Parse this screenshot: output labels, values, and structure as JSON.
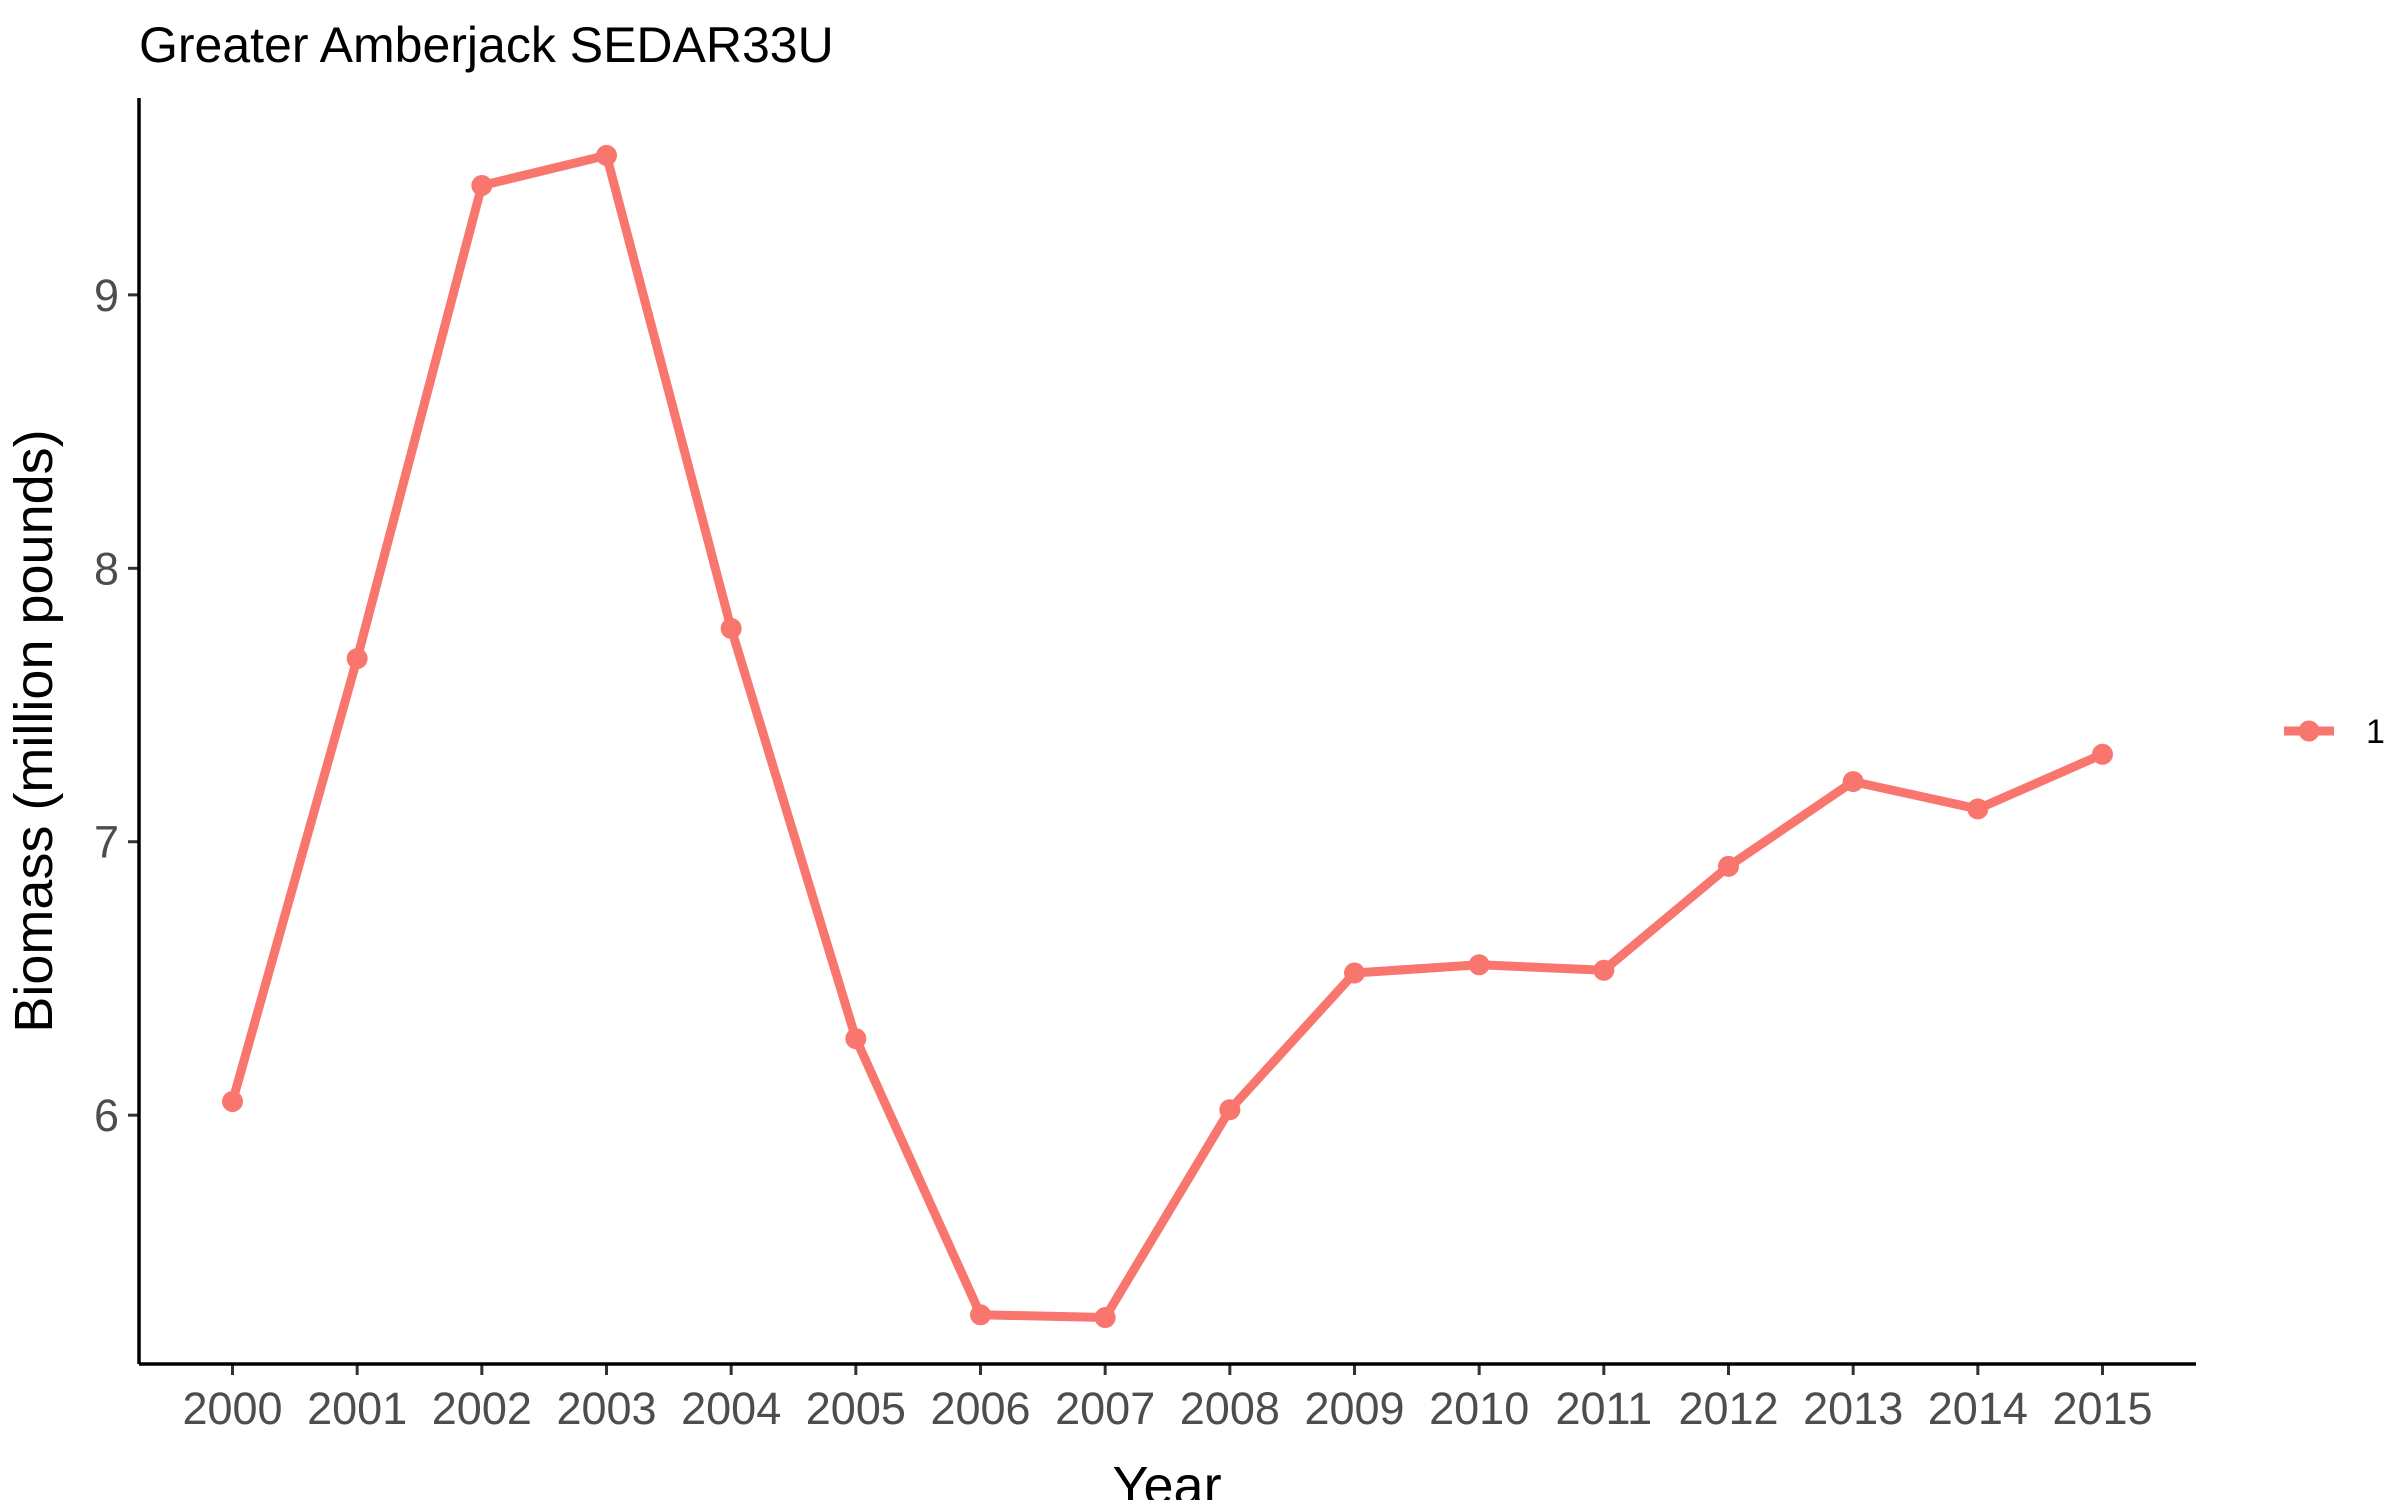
{
  "chart_data": {
    "type": "line",
    "title": "Greater Amberjack SEDAR33U",
    "xlabel": "Year",
    "ylabel": "Biomass (million pounds)",
    "x": [
      2000,
      2001,
      2002,
      2003,
      2004,
      2005,
      2006,
      2007,
      2008,
      2009,
      2010,
      2011,
      2012,
      2013,
      2014,
      2015
    ],
    "x_tick_labels": [
      "2000",
      "2001",
      "2002",
      "2003",
      "2004",
      "2005",
      "2006",
      "2007",
      "2008",
      "2009",
      "2010",
      "2011",
      "2012",
      "2013",
      "2014",
      "2015"
    ],
    "xlim": [
      1999.25,
      2015.75
    ],
    "y_ticks": [
      6,
      7,
      8,
      9
    ],
    "y_tick_labels": [
      "6",
      "7",
      "8",
      "9"
    ],
    "ylim": [
      5.09,
      9.72
    ],
    "series": [
      {
        "name": "1",
        "color": "#F8766D",
        "values": [
          6.05,
          7.67,
          9.4,
          9.51,
          7.78,
          6.28,
          5.27,
          5.26,
          6.02,
          6.52,
          6.55,
          6.53,
          6.91,
          7.22,
          7.12,
          7.32
        ]
      }
    ],
    "legend": {
      "position": "right",
      "entries": [
        "1"
      ]
    },
    "grid": false
  }
}
